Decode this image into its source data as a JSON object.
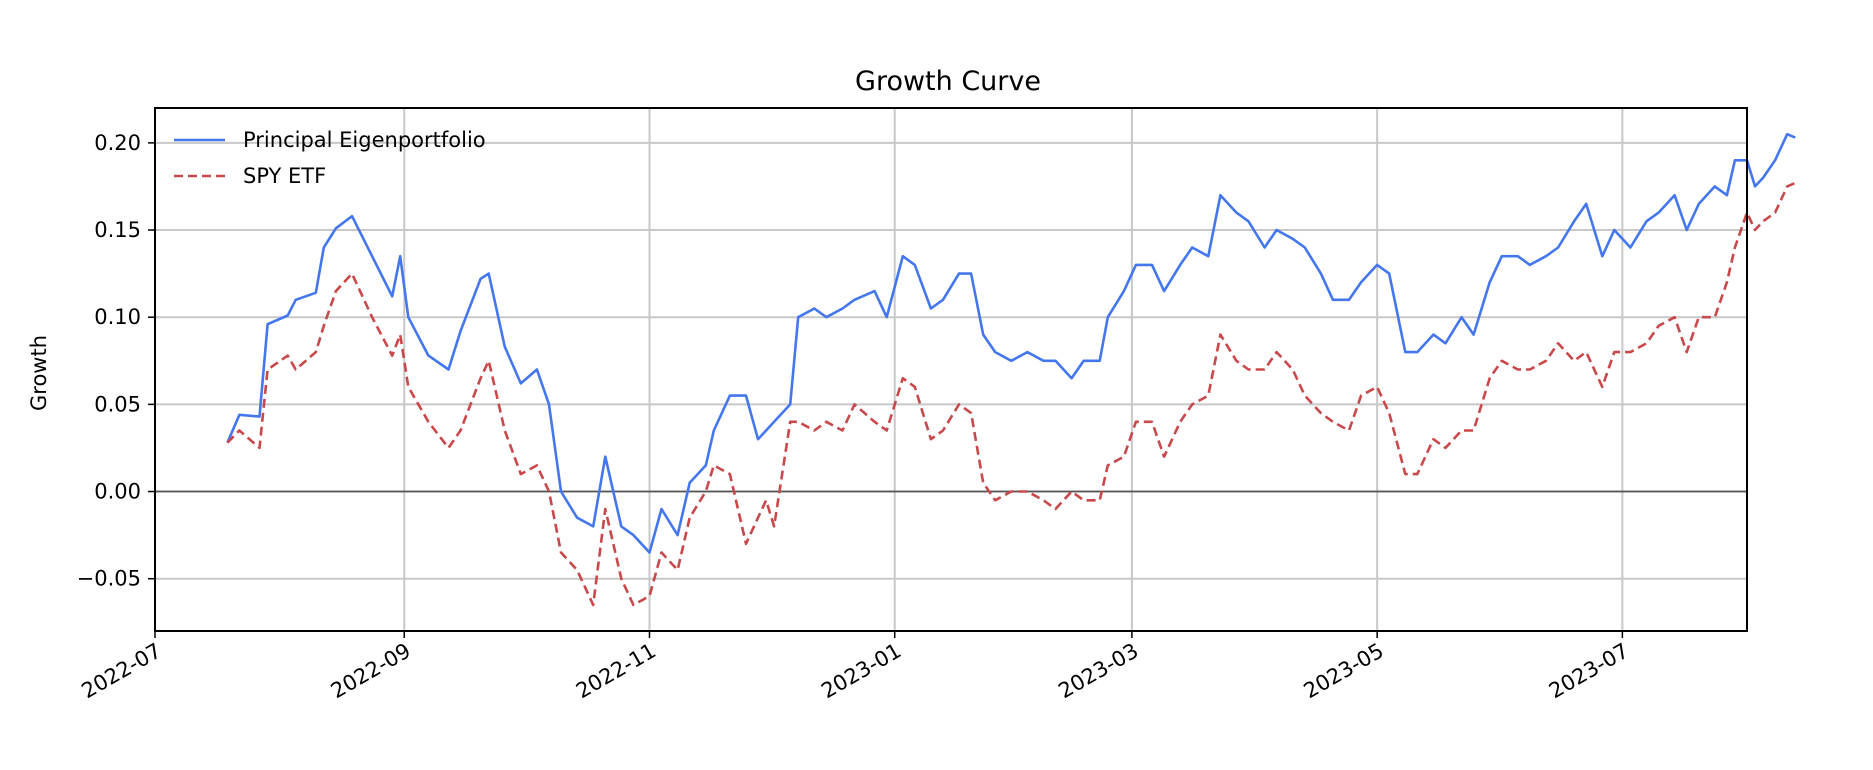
{
  "chart_data": {
    "type": "line",
    "title": "Growth Curve",
    "xlabel": "",
    "ylabel": "Growth",
    "x_range": [
      "2022-07-01",
      "2023-08-01"
    ],
    "ylim": [
      -0.08,
      0.22
    ],
    "x_ticks": [
      "2022-07",
      "2022-09",
      "2022-11",
      "2023-01",
      "2023-03",
      "2023-05",
      "2023-07"
    ],
    "y_ticks": [
      -0.05,
      0.0,
      0.05,
      0.1,
      0.15,
      0.2
    ],
    "y_tick_labels": [
      "−0.05",
      "0.00",
      "0.05",
      "0.10",
      "0.15",
      "0.20"
    ],
    "grid": true,
    "zero_line": true,
    "legend_position": "top-left",
    "series": [
      {
        "name": "Principal Eigenportfolio",
        "color": "#4477ee",
        "style": "solid",
        "points": [
          [
            "2022-07-19",
            0.028
          ],
          [
            "2022-07-22",
            0.044
          ],
          [
            "2022-07-27",
            0.043
          ],
          [
            "2022-07-29",
            0.096
          ],
          [
            "2022-08-03",
            0.101
          ],
          [
            "2022-08-05",
            0.11
          ],
          [
            "2022-08-10",
            0.114
          ],
          [
            "2022-08-12",
            0.14
          ],
          [
            "2022-08-15",
            0.151
          ],
          [
            "2022-08-19",
            0.158
          ],
          [
            "2022-08-24",
            0.135
          ],
          [
            "2022-08-29",
            0.112
          ],
          [
            "2022-08-31",
            0.135
          ],
          [
            "2022-09-02",
            0.1
          ],
          [
            "2022-09-07",
            0.078
          ],
          [
            "2022-09-12",
            0.07
          ],
          [
            "2022-09-15",
            0.092
          ],
          [
            "2022-09-20",
            0.122
          ],
          [
            "2022-09-22",
            0.125
          ],
          [
            "2022-09-26",
            0.083
          ],
          [
            "2022-09-30",
            0.062
          ],
          [
            "2022-10-04",
            0.07
          ],
          [
            "2022-10-07",
            0.05
          ],
          [
            "2022-10-10",
            0.0
          ],
          [
            "2022-10-14",
            -0.015
          ],
          [
            "2022-10-18",
            -0.02
          ],
          [
            "2022-10-21",
            0.02
          ],
          [
            "2022-10-25",
            -0.02
          ],
          [
            "2022-10-28",
            -0.025
          ],
          [
            "2022-11-01",
            -0.035
          ],
          [
            "2022-11-04",
            -0.01
          ],
          [
            "2022-11-08",
            -0.025
          ],
          [
            "2022-11-11",
            0.005
          ],
          [
            "2022-11-15",
            0.015
          ],
          [
            "2022-11-17",
            0.035
          ],
          [
            "2022-11-21",
            0.055
          ],
          [
            "2022-11-25",
            0.055
          ],
          [
            "2022-11-28",
            0.03
          ],
          [
            "2022-11-30",
            0.035
          ],
          [
            "2022-12-02",
            0.04
          ],
          [
            "2022-12-06",
            0.05
          ],
          [
            "2022-12-08",
            0.1
          ],
          [
            "2022-12-12",
            0.105
          ],
          [
            "2022-12-15",
            0.1
          ],
          [
            "2022-12-19",
            0.105
          ],
          [
            "2022-12-22",
            0.11
          ],
          [
            "2022-12-27",
            0.115
          ],
          [
            "2022-12-30",
            0.1
          ],
          [
            "2023-01-03",
            0.135
          ],
          [
            "2023-01-06",
            0.13
          ],
          [
            "2023-01-10",
            0.105
          ],
          [
            "2023-01-13",
            0.11
          ],
          [
            "2023-01-17",
            0.125
          ],
          [
            "2023-01-20",
            0.125
          ],
          [
            "2023-01-23",
            0.09
          ],
          [
            "2023-01-26",
            0.08
          ],
          [
            "2023-01-30",
            0.075
          ],
          [
            "2023-02-03",
            0.08
          ],
          [
            "2023-02-07",
            0.075
          ],
          [
            "2023-02-10",
            0.075
          ],
          [
            "2023-02-14",
            0.065
          ],
          [
            "2023-02-17",
            0.075
          ],
          [
            "2023-02-21",
            0.075
          ],
          [
            "2023-02-23",
            0.1
          ],
          [
            "2023-02-27",
            0.115
          ],
          [
            "2023-03-02",
            0.13
          ],
          [
            "2023-03-06",
            0.13
          ],
          [
            "2023-03-09",
            0.115
          ],
          [
            "2023-03-13",
            0.13
          ],
          [
            "2023-03-16",
            0.14
          ],
          [
            "2023-03-20",
            0.135
          ],
          [
            "2023-03-23",
            0.17
          ],
          [
            "2023-03-27",
            0.16
          ],
          [
            "2023-03-30",
            0.155
          ],
          [
            "2023-04-03",
            0.14
          ],
          [
            "2023-04-06",
            0.15
          ],
          [
            "2023-04-10",
            0.145
          ],
          [
            "2023-04-13",
            0.14
          ],
          [
            "2023-04-17",
            0.125
          ],
          [
            "2023-04-20",
            0.11
          ],
          [
            "2023-04-24",
            0.11
          ],
          [
            "2023-04-27",
            0.12
          ],
          [
            "2023-05-01",
            0.13
          ],
          [
            "2023-05-04",
            0.125
          ],
          [
            "2023-05-08",
            0.08
          ],
          [
            "2023-05-11",
            0.08
          ],
          [
            "2023-05-15",
            0.09
          ],
          [
            "2023-05-18",
            0.085
          ],
          [
            "2023-05-22",
            0.1
          ],
          [
            "2023-05-25",
            0.09
          ],
          [
            "2023-05-29",
            0.12
          ],
          [
            "2023-06-01",
            0.135
          ],
          [
            "2023-06-05",
            0.135
          ],
          [
            "2023-06-08",
            0.13
          ],
          [
            "2023-06-12",
            0.135
          ],
          [
            "2023-06-15",
            0.14
          ],
          [
            "2023-06-19",
            0.155
          ],
          [
            "2023-06-22",
            0.165
          ],
          [
            "2023-06-26",
            0.135
          ],
          [
            "2023-06-29",
            0.15
          ],
          [
            "2023-07-03",
            0.14
          ],
          [
            "2023-07-07",
            0.155
          ],
          [
            "2023-07-10",
            0.16
          ],
          [
            "2023-07-14",
            0.17
          ],
          [
            "2023-07-17",
            0.15
          ],
          [
            "2023-07-20",
            0.165
          ],
          [
            "2023-07-24",
            0.175
          ],
          [
            "2023-07-27",
            0.17
          ],
          [
            "2023-07-29",
            0.19
          ],
          [
            "2023-08-01",
            0.19
          ],
          [
            "2023-08-03",
            0.175
          ],
          [
            "2023-08-05",
            0.18
          ],
          [
            "2023-08-08",
            0.19
          ],
          [
            "2023-08-11",
            0.205
          ],
          [
            "2023-08-13",
            0.203
          ]
        ]
      },
      {
        "name": "SPY ETF",
        "color": "#c9484b",
        "style": "dashed",
        "points": [
          [
            "2022-07-19",
            0.028
          ],
          [
            "2022-07-22",
            0.035
          ],
          [
            "2022-07-27",
            0.025
          ],
          [
            "2022-07-29",
            0.07
          ],
          [
            "2022-08-03",
            0.078
          ],
          [
            "2022-08-05",
            0.07
          ],
          [
            "2022-08-10",
            0.08
          ],
          [
            "2022-08-12",
            0.095
          ],
          [
            "2022-08-15",
            0.115
          ],
          [
            "2022-08-19",
            0.125
          ],
          [
            "2022-08-24",
            0.1
          ],
          [
            "2022-08-29",
            0.078
          ],
          [
            "2022-08-31",
            0.09
          ],
          [
            "2022-09-02",
            0.06
          ],
          [
            "2022-09-07",
            0.04
          ],
          [
            "2022-09-12",
            0.025
          ],
          [
            "2022-09-15",
            0.035
          ],
          [
            "2022-09-20",
            0.065
          ],
          [
            "2022-09-22",
            0.075
          ],
          [
            "2022-09-26",
            0.035
          ],
          [
            "2022-09-30",
            0.01
          ],
          [
            "2022-10-04",
            0.015
          ],
          [
            "2022-10-07",
            0.0
          ],
          [
            "2022-10-10",
            -0.035
          ],
          [
            "2022-10-14",
            -0.045
          ],
          [
            "2022-10-18",
            -0.065
          ],
          [
            "2022-10-21",
            -0.01
          ],
          [
            "2022-10-25",
            -0.05
          ],
          [
            "2022-10-28",
            -0.065
          ],
          [
            "2022-11-01",
            -0.06
          ],
          [
            "2022-11-04",
            -0.035
          ],
          [
            "2022-11-08",
            -0.045
          ],
          [
            "2022-11-11",
            -0.015
          ],
          [
            "2022-11-15",
            0.0
          ],
          [
            "2022-11-17",
            0.015
          ],
          [
            "2022-11-21",
            0.01
          ],
          [
            "2022-11-25",
            -0.03
          ],
          [
            "2022-11-28",
            -0.015
          ],
          [
            "2022-11-30",
            -0.005
          ],
          [
            "2022-12-02",
            -0.02
          ],
          [
            "2022-12-06",
            0.04
          ],
          [
            "2022-12-08",
            0.04
          ],
          [
            "2022-12-12",
            0.035
          ],
          [
            "2022-12-15",
            0.04
          ],
          [
            "2022-12-19",
            0.035
          ],
          [
            "2022-12-22",
            0.05
          ],
          [
            "2022-12-27",
            0.04
          ],
          [
            "2022-12-30",
            0.035
          ],
          [
            "2023-01-03",
            0.065
          ],
          [
            "2023-01-06",
            0.06
          ],
          [
            "2023-01-10",
            0.03
          ],
          [
            "2023-01-13",
            0.035
          ],
          [
            "2023-01-17",
            0.05
          ],
          [
            "2023-01-20",
            0.045
          ],
          [
            "2023-01-23",
            0.005
          ],
          [
            "2023-01-26",
            -0.005
          ],
          [
            "2023-01-30",
            0.0
          ],
          [
            "2023-02-03",
            0.0
          ],
          [
            "2023-02-07",
            -0.005
          ],
          [
            "2023-02-10",
            -0.01
          ],
          [
            "2023-02-14",
            0.0
          ],
          [
            "2023-02-17",
            -0.005
          ],
          [
            "2023-02-21",
            -0.005
          ],
          [
            "2023-02-23",
            0.015
          ],
          [
            "2023-02-27",
            0.02
          ],
          [
            "2023-03-02",
            0.04
          ],
          [
            "2023-03-06",
            0.04
          ],
          [
            "2023-03-09",
            0.02
          ],
          [
            "2023-03-13",
            0.04
          ],
          [
            "2023-03-16",
            0.05
          ],
          [
            "2023-03-20",
            0.055
          ],
          [
            "2023-03-23",
            0.09
          ],
          [
            "2023-03-27",
            0.075
          ],
          [
            "2023-03-30",
            0.07
          ],
          [
            "2023-04-03",
            0.07
          ],
          [
            "2023-04-06",
            0.08
          ],
          [
            "2023-04-10",
            0.07
          ],
          [
            "2023-04-13",
            0.055
          ],
          [
            "2023-04-17",
            0.045
          ],
          [
            "2023-04-20",
            0.04
          ],
          [
            "2023-04-24",
            0.035
          ],
          [
            "2023-04-27",
            0.055
          ],
          [
            "2023-05-01",
            0.06
          ],
          [
            "2023-05-04",
            0.045
          ],
          [
            "2023-05-08",
            0.01
          ],
          [
            "2023-05-11",
            0.01
          ],
          [
            "2023-05-15",
            0.03
          ],
          [
            "2023-05-18",
            0.025
          ],
          [
            "2023-05-22",
            0.035
          ],
          [
            "2023-05-25",
            0.035
          ],
          [
            "2023-05-29",
            0.065
          ],
          [
            "2023-06-01",
            0.075
          ],
          [
            "2023-06-05",
            0.07
          ],
          [
            "2023-06-08",
            0.07
          ],
          [
            "2023-06-12",
            0.075
          ],
          [
            "2023-06-15",
            0.085
          ],
          [
            "2023-06-19",
            0.075
          ],
          [
            "2023-06-22",
            0.08
          ],
          [
            "2023-06-26",
            0.06
          ],
          [
            "2023-06-29",
            0.08
          ],
          [
            "2023-07-03",
            0.08
          ],
          [
            "2023-07-07",
            0.085
          ],
          [
            "2023-07-10",
            0.095
          ],
          [
            "2023-07-14",
            0.1
          ],
          [
            "2023-07-17",
            0.08
          ],
          [
            "2023-07-20",
            0.1
          ],
          [
            "2023-07-24",
            0.1
          ],
          [
            "2023-07-27",
            0.12
          ],
          [
            "2023-07-29",
            0.14
          ],
          [
            "2023-08-01",
            0.16
          ],
          [
            "2023-08-03",
            0.15
          ],
          [
            "2023-08-05",
            0.155
          ],
          [
            "2023-08-08",
            0.16
          ],
          [
            "2023-08-11",
            0.175
          ],
          [
            "2023-08-13",
            0.177
          ]
        ]
      }
    ]
  }
}
